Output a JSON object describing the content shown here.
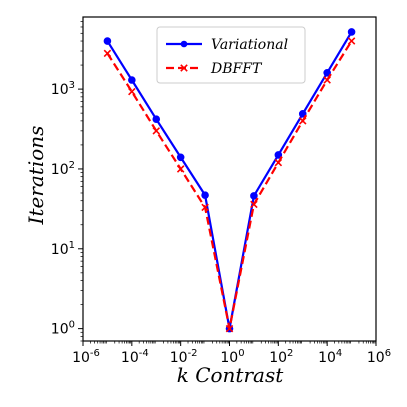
{
  "chart_data": {
    "type": "line",
    "xlabel": "k Contrast",
    "ylabel": "Iterations",
    "xscale": "log",
    "yscale": "log",
    "xlim": [
      1e-06,
      1000000.0
    ],
    "ylim": [
      0.7,
      8000
    ],
    "grid": false,
    "legend_position": "top-center",
    "x_ticks": [
      {
        "value": 1e-06,
        "base": "10",
        "exp": "-6"
      },
      {
        "value": 0.0001,
        "base": "10",
        "exp": "-4"
      },
      {
        "value": 0.01,
        "base": "10",
        "exp": "-2"
      },
      {
        "value": 1.0,
        "base": "10",
        "exp": "0"
      },
      {
        "value": 100.0,
        "base": "10",
        "exp": "2"
      },
      {
        "value": 10000.0,
        "base": "10",
        "exp": "4"
      },
      {
        "value": 1000000.0,
        "base": "10",
        "exp": "6"
      }
    ],
    "y_ticks": [
      {
        "value": 1,
        "base": "10",
        "exp": "0"
      },
      {
        "value": 10,
        "base": "10",
        "exp": "1"
      },
      {
        "value": 100,
        "base": "10",
        "exp": "2"
      },
      {
        "value": 1000,
        "base": "10",
        "exp": "3"
      }
    ],
    "x": [
      1e-05,
      0.0001,
      0.001,
      0.01,
      0.1,
      1,
      10,
      100,
      1000,
      10000,
      100000
    ],
    "series": [
      {
        "name": "Variational",
        "color": "#0000ff",
        "line_style": "solid",
        "marker": "circle",
        "values": [
          4000,
          1300,
          420,
          140,
          47,
          1,
          46,
          150,
          490,
          1600,
          5200
        ]
      },
      {
        "name": "DBFFT",
        "color": "#ff0000",
        "line_style": "dashed",
        "marker": "x",
        "values": [
          2800,
          930,
          300,
          100,
          33,
          1,
          36,
          120,
          400,
          1300,
          4000
        ]
      }
    ]
  }
}
